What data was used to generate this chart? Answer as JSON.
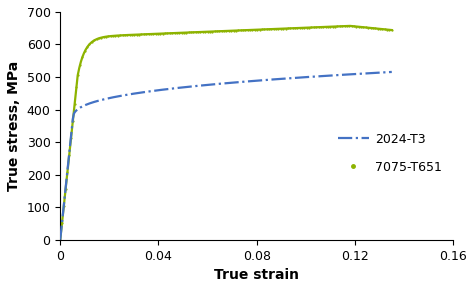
{
  "title": "",
  "xlabel": "True strain",
  "ylabel": "True stress, MPa",
  "xlim": [
    0,
    0.16
  ],
  "ylim": [
    0,
    700
  ],
  "xticks": [
    0,
    0.04,
    0.08,
    0.12,
    0.16
  ],
  "yticks": [
    0,
    100,
    200,
    300,
    400,
    500,
    600,
    700
  ],
  "color_2024": "#4472C4",
  "color_7075": "#8DB300",
  "legend_labels": [
    "2024-T3",
    "7075-T651"
  ],
  "xlabel_fontsize": 10,
  "ylabel_fontsize": 10,
  "tick_fontsize": 9,
  "legend_fontsize": 9
}
